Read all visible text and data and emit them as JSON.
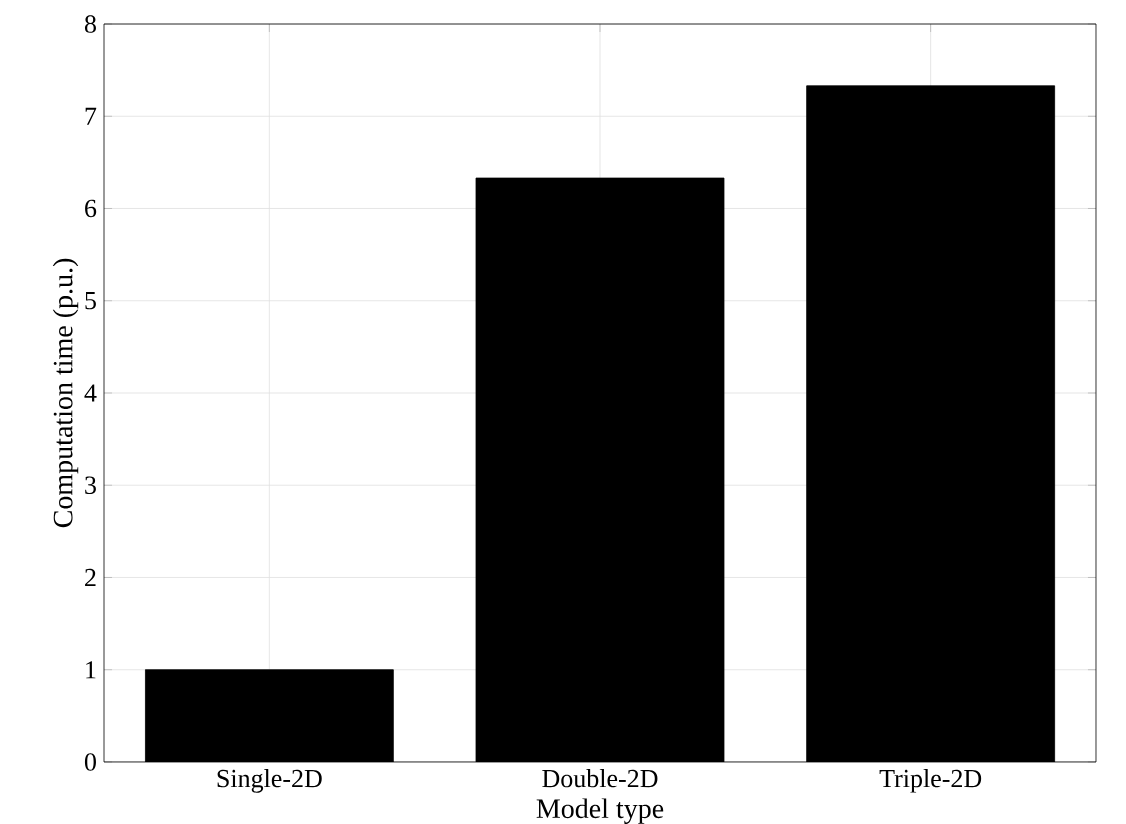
{
  "chart_data": {
    "type": "bar",
    "xlabel": "Model type",
    "ylabel": "Computation time (p.u.)",
    "categories": [
      "Single-2D",
      "Double-2D",
      "Triple-2D"
    ],
    "values": [
      1.0,
      6.33,
      7.33
    ],
    "color": "#000000",
    "ylim": [
      0,
      8
    ],
    "yticks": [
      0,
      1,
      2,
      3,
      4,
      5,
      6,
      7,
      8
    ],
    "grid": true
  }
}
